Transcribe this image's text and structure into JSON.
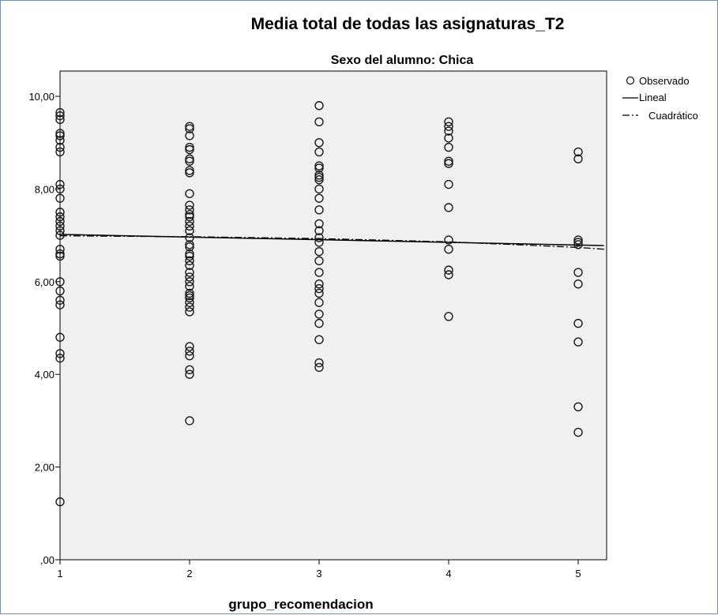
{
  "chart_data": {
    "type": "scatter",
    "title": "Media total de todas las asignaturas_T2",
    "subtitle": "Sexo del alumno: Chica",
    "xlabel": "grupo_recomendacion",
    "ylabel": "",
    "xlim": [
      1,
      5.2
    ],
    "ylim": [
      0,
      10.5
    ],
    "x_ticks": [
      "1",
      "2",
      "3",
      "4",
      "5"
    ],
    "y_ticks": [
      ",00",
      "2,00",
      "4,00",
      "6,00",
      "8,00",
      "10,00"
    ],
    "grid": false,
    "legend_position": "top-right",
    "legend": [
      "Observado",
      "Lineal",
      "Cuadrático"
    ],
    "colors": {
      "plot_bg": "#f0f0f0",
      "marker": "#1a1a1a",
      "line": "#000000",
      "frame": "#6b8fbf"
    },
    "series": [
      {
        "name": "Observado",
        "points": [
          [
            1,
            9.65
          ],
          [
            1,
            9.58
          ],
          [
            1,
            9.5
          ],
          [
            1,
            9.2
          ],
          [
            1,
            9.15
          ],
          [
            1,
            9.05
          ],
          [
            1,
            8.9
          ],
          [
            1,
            8.8
          ],
          [
            1,
            8.1
          ],
          [
            1,
            8.0
          ],
          [
            1,
            7.8
          ],
          [
            1,
            7.5
          ],
          [
            1,
            7.4
          ],
          [
            1,
            7.3
          ],
          [
            1,
            7.2
          ],
          [
            1,
            7.1
          ],
          [
            1,
            7.0
          ],
          [
            1,
            6.7
          ],
          [
            1,
            6.6
          ],
          [
            1,
            6.55
          ],
          [
            1,
            6.0
          ],
          [
            1,
            5.8
          ],
          [
            1,
            5.6
          ],
          [
            1,
            5.5
          ],
          [
            1,
            4.8
          ],
          [
            1,
            4.45
          ],
          [
            1,
            4.35
          ],
          [
            1,
            1.25
          ],
          [
            2,
            9.35
          ],
          [
            2,
            9.3
          ],
          [
            2,
            9.15
          ],
          [
            2,
            8.9
          ],
          [
            2,
            8.85
          ],
          [
            2,
            8.65
          ],
          [
            2,
            8.6
          ],
          [
            2,
            8.4
          ],
          [
            2,
            8.35
          ],
          [
            2,
            7.9
          ],
          [
            2,
            7.65
          ],
          [
            2,
            7.55
          ],
          [
            2,
            7.45
          ],
          [
            2,
            7.4
          ],
          [
            2,
            7.3
          ],
          [
            2,
            7.2
          ],
          [
            2,
            7.1
          ],
          [
            2,
            6.95
          ],
          [
            2,
            6.8
          ],
          [
            2,
            6.75
          ],
          [
            2,
            6.6
          ],
          [
            2,
            6.55
          ],
          [
            2,
            6.45
          ],
          [
            2,
            6.35
          ],
          [
            2,
            6.2
          ],
          [
            2,
            6.1
          ],
          [
            2,
            6.0
          ],
          [
            2,
            5.9
          ],
          [
            2,
            5.75
          ],
          [
            2,
            5.7
          ],
          [
            2,
            5.65
          ],
          [
            2,
            5.55
          ],
          [
            2,
            5.45
          ],
          [
            2,
            5.35
          ],
          [
            2,
            4.6
          ],
          [
            2,
            4.5
          ],
          [
            2,
            4.4
          ],
          [
            2,
            4.1
          ],
          [
            2,
            4.0
          ],
          [
            2,
            3.0
          ],
          [
            3,
            9.8
          ],
          [
            3,
            9.45
          ],
          [
            3,
            9.0
          ],
          [
            3,
            8.8
          ],
          [
            3,
            8.5
          ],
          [
            3,
            8.45
          ],
          [
            3,
            8.3
          ],
          [
            3,
            8.25
          ],
          [
            3,
            8.2
          ],
          [
            3,
            8.0
          ],
          [
            3,
            7.8
          ],
          [
            3,
            7.55
          ],
          [
            3,
            7.25
          ],
          [
            3,
            7.1
          ],
          [
            3,
            6.95
          ],
          [
            3,
            6.85
          ],
          [
            3,
            6.65
          ],
          [
            3,
            6.45
          ],
          [
            3,
            6.2
          ],
          [
            3,
            5.95
          ],
          [
            3,
            5.85
          ],
          [
            3,
            5.75
          ],
          [
            3,
            5.55
          ],
          [
            3,
            5.3
          ],
          [
            3,
            5.1
          ],
          [
            3,
            4.75
          ],
          [
            3,
            4.25
          ],
          [
            3,
            4.15
          ],
          [
            4,
            9.45
          ],
          [
            4,
            9.35
          ],
          [
            4,
            9.25
          ],
          [
            4,
            9.1
          ],
          [
            4,
            8.9
          ],
          [
            4,
            8.6
          ],
          [
            4,
            8.55
          ],
          [
            4,
            8.1
          ],
          [
            4,
            7.6
          ],
          [
            4,
            6.9
          ],
          [
            4,
            6.7
          ],
          [
            4,
            6.25
          ],
          [
            4,
            6.15
          ],
          [
            4,
            5.25
          ],
          [
            5,
            8.8
          ],
          [
            5,
            8.65
          ],
          [
            5,
            6.9
          ],
          [
            5,
            6.85
          ],
          [
            5,
            6.8
          ],
          [
            5,
            6.2
          ],
          [
            5,
            5.95
          ],
          [
            5,
            5.1
          ],
          [
            5,
            4.7
          ],
          [
            5,
            3.3
          ],
          [
            5,
            2.75
          ]
        ]
      },
      {
        "name": "Lineal",
        "x": [
          1,
          5.2
        ],
        "y": [
          7.02,
          6.78
        ]
      },
      {
        "name": "Cuadrático",
        "x": [
          1,
          2,
          3,
          4,
          5,
          5.2
        ],
        "y": [
          6.99,
          6.97,
          6.93,
          6.86,
          6.74,
          6.7
        ]
      }
    ]
  }
}
